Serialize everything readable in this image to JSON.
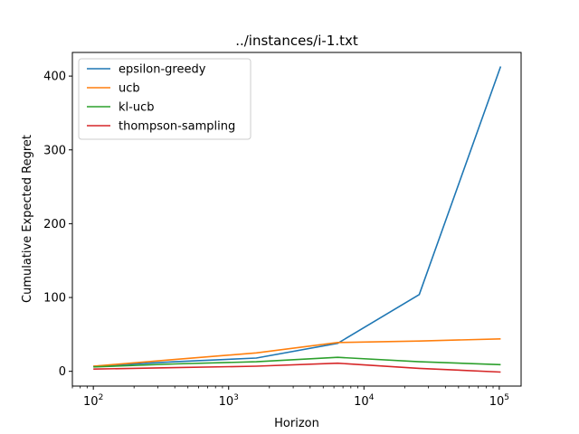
{
  "chart_data": {
    "type": "line",
    "title": "../instances/i-1.txt",
    "xlabel": "Horizon",
    "ylabel": "Cumulative Expected Regret",
    "x_scale": "log",
    "x": [
      100,
      400,
      1600,
      6400,
      25600,
      102400
    ],
    "xlim": [
      70,
      145000
    ],
    "ylim": [
      -20,
      432
    ],
    "x_ticks": [
      {
        "base": "10",
        "exp": "2",
        "value": 100
      },
      {
        "base": "10",
        "exp": "3",
        "value": 1000
      },
      {
        "base": "10",
        "exp": "4",
        "value": 10000
      },
      {
        "base": "10",
        "exp": "5",
        "value": 100000
      }
    ],
    "y_ticks": [
      "0",
      "100",
      "200",
      "300",
      "400"
    ],
    "legend_position": "top-left",
    "grid": false,
    "series": [
      {
        "name": "epsilon-greedy",
        "color": "#1f77b4",
        "values": [
          7,
          13,
          18,
          38,
          104,
          413
        ]
      },
      {
        "name": "ucb",
        "color": "#ff7f0e",
        "values": [
          7,
          16,
          25,
          39,
          41,
          44
        ]
      },
      {
        "name": "kl-ucb",
        "color": "#2ca02c",
        "values": [
          6,
          10,
          13,
          19,
          13,
          9
        ]
      },
      {
        "name": "thompson-sampling",
        "color": "#d62728",
        "values": [
          3,
          5,
          7,
          11,
          4,
          -1
        ]
      }
    ]
  }
}
